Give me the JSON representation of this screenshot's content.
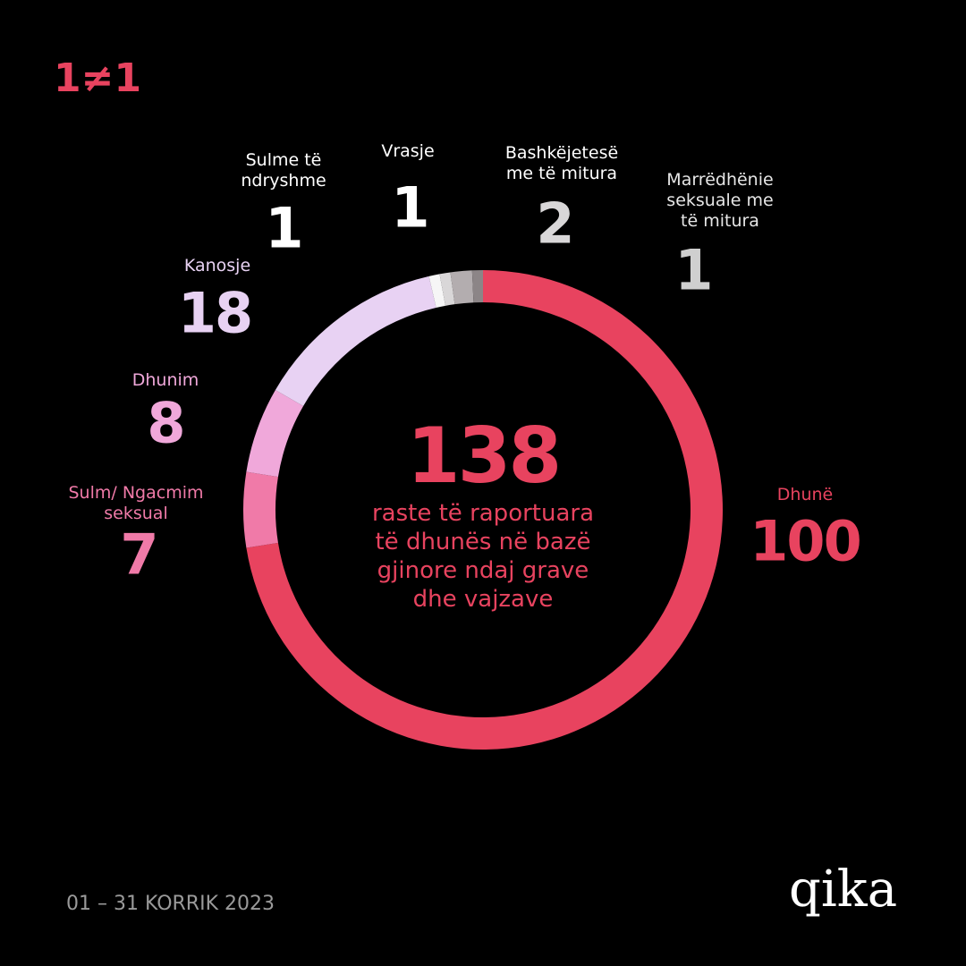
{
  "header": {
    "logo": "1≠1"
  },
  "footer": {
    "date": "01 – 31 KORRIK 2023",
    "brand": "qika"
  },
  "chart_data": {
    "type": "donut",
    "total": 138,
    "caption": "raste të raportuara\ntë dhunës në bazë\ngjinore ndaj grave\ndhe vajzave",
    "categories": [
      "Dhunë",
      "Sulm/ Ngacmim\nseksual",
      "Dhunim",
      "Kanosje",
      "Sulme të\nndryshme",
      "Vrasje",
      "Bashkëjetesë\nme të mitura",
      "Marrëdhënie\nseksuale me\ntë mitura"
    ],
    "values": [
      100,
      7,
      8,
      18,
      1,
      1,
      2,
      1
    ],
    "colors": [
      "#e8435f",
      "#f07aa8",
      "#f0a8da",
      "#e8d2f3",
      "#f6f6f6",
      "#d9d7d8",
      "#b3adaf",
      "#8c8587"
    ],
    "label_colors": [
      "#e8435f",
      "#f07aa8",
      "#f0a8da",
      "#e8d2f3",
      "#ffffff",
      "#ffffff",
      "#ffffff",
      "#e6e6e6"
    ],
    "number_colors": [
      "#e8435f",
      "#f07aa8",
      "#f0a8da",
      "#e8d2f3",
      "#ffffff",
      "#ffffff",
      "#d9d7d8",
      "#cfcfcf"
    ]
  }
}
